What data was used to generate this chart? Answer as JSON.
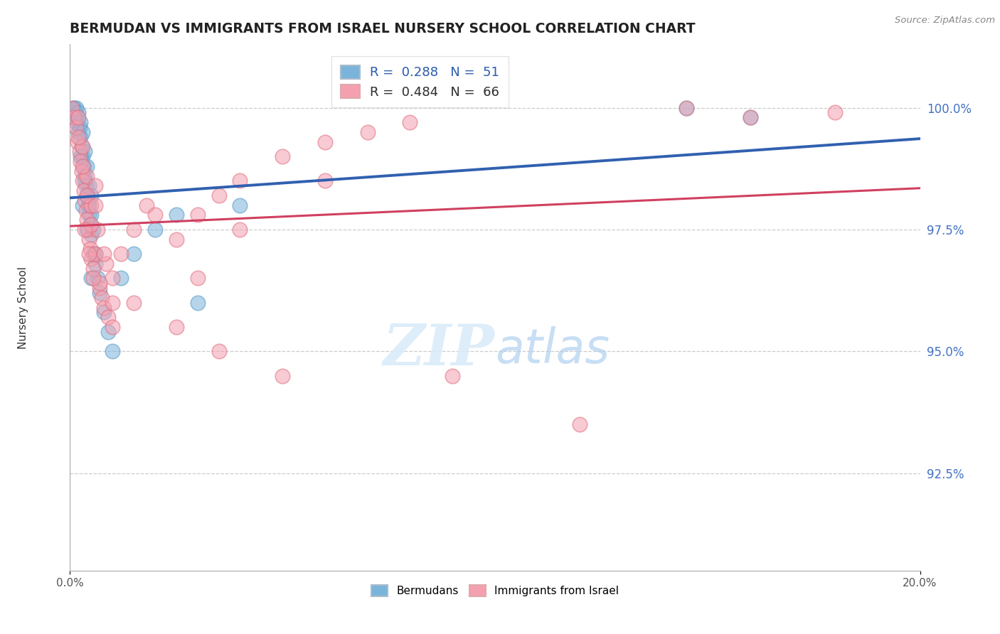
{
  "title": "BERMUDAN VS IMMIGRANTS FROM ISRAEL NURSERY SCHOOL CORRELATION CHART",
  "source": "Source: ZipAtlas.com",
  "ylabel": "Nursery School",
  "ytick_vals": [
    92.5,
    95.0,
    97.5,
    100.0
  ],
  "ytick_labels": [
    "92.5%",
    "95.0%",
    "97.5%",
    "100.0%"
  ],
  "xlim": [
    0.0,
    20.0
  ],
  "ylim": [
    90.5,
    101.3
  ],
  "blue_color": "#7ab4db",
  "pink_color": "#f4a0b0",
  "blue_edge_color": "#5a9ac5",
  "pink_edge_color": "#e07080",
  "blue_line_color": "#3060b0",
  "pink_line_color": "#d04060",
  "legend_blue_R": 0.288,
  "legend_blue_N": 51,
  "legend_pink_R": 0.484,
  "legend_pink_N": 66,
  "legend_text_blue": "0.288",
  "legend_text_pink": "0.484",
  "watermark_zip": "ZIP",
  "watermark_atlas": "atlas",
  "blue_x": [
    0.05,
    0.08,
    0.1,
    0.12,
    0.15,
    0.15,
    0.18,
    0.2,
    0.2,
    0.22,
    0.25,
    0.25,
    0.28,
    0.3,
    0.3,
    0.32,
    0.35,
    0.35,
    0.38,
    0.4,
    0.4,
    0.42,
    0.45,
    0.45,
    0.48,
    0.5,
    0.5,
    0.5,
    0.55,
    0.55,
    0.6,
    0.65,
    0.7,
    0.8,
    0.9,
    1.0,
    1.2,
    1.5,
    2.0,
    2.5,
    3.0,
    4.0,
    0.3,
    0.4,
    0.5,
    0.6,
    14.5,
    16.0,
    0.25,
    0.35,
    0.45
  ],
  "blue_y": [
    99.8,
    100.0,
    100.0,
    99.9,
    100.0,
    99.7,
    99.8,
    99.5,
    99.9,
    99.6,
    99.4,
    99.7,
    99.2,
    99.0,
    99.5,
    98.8,
    98.6,
    99.1,
    98.4,
    98.2,
    98.8,
    98.0,
    97.8,
    98.4,
    97.6,
    97.4,
    97.8,
    98.2,
    97.0,
    97.5,
    96.8,
    96.5,
    96.2,
    95.8,
    95.4,
    95.0,
    96.5,
    97.0,
    97.5,
    97.8,
    96.0,
    98.0,
    98.0,
    97.5,
    96.5,
    97.0,
    100.0,
    99.8,
    99.0,
    98.5,
    98.0
  ],
  "pink_x": [
    0.05,
    0.1,
    0.15,
    0.18,
    0.2,
    0.22,
    0.25,
    0.28,
    0.3,
    0.3,
    0.32,
    0.35,
    0.38,
    0.4,
    0.4,
    0.42,
    0.45,
    0.48,
    0.5,
    0.5,
    0.55,
    0.6,
    0.65,
    0.7,
    0.75,
    0.8,
    0.85,
    0.9,
    1.0,
    1.0,
    1.2,
    1.5,
    1.8,
    2.0,
    2.5,
    3.0,
    3.5,
    4.0,
    5.0,
    6.0,
    7.0,
    8.0,
    0.2,
    0.3,
    0.4,
    0.5,
    0.6,
    0.7,
    14.5,
    16.0,
    18.0,
    0.35,
    0.45,
    0.55,
    1.5,
    2.5,
    3.5,
    5.0,
    9.0,
    12.0,
    0.6,
    0.8,
    1.0,
    3.0,
    4.0,
    6.0
  ],
  "pink_y": [
    100.0,
    99.8,
    99.6,
    99.3,
    99.8,
    99.1,
    98.9,
    98.7,
    99.2,
    98.5,
    98.3,
    98.1,
    97.9,
    98.6,
    97.7,
    97.5,
    97.3,
    97.1,
    98.0,
    96.9,
    96.7,
    98.4,
    97.5,
    96.3,
    96.1,
    95.9,
    96.8,
    95.7,
    95.5,
    96.5,
    97.0,
    97.5,
    98.0,
    97.8,
    97.3,
    97.8,
    98.2,
    98.5,
    99.0,
    99.3,
    99.5,
    99.7,
    99.4,
    98.8,
    98.2,
    97.6,
    97.0,
    96.4,
    100.0,
    99.8,
    99.9,
    97.5,
    97.0,
    96.5,
    96.0,
    95.5,
    95.0,
    94.5,
    94.5,
    93.5,
    98.0,
    97.0,
    96.0,
    96.5,
    97.5,
    98.5
  ]
}
